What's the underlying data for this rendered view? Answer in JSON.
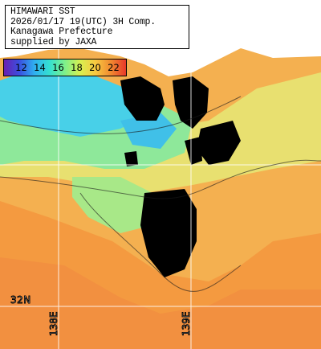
{
  "caption": {
    "line1": "HIMAWARI SST",
    "line2": "2026/01/17 19(UTC) 3H Comp.",
    "line3": "Kanagawa Prefecture",
    "line4": "supplied by JAXA"
  },
  "legend": {
    "labels": [
      "12",
      "14",
      "16",
      "18",
      "20",
      "22"
    ],
    "colors": [
      "#6a1fb0",
      "#3a4fe0",
      "#2fb0f0",
      "#35e0d0",
      "#7ff08a",
      "#d8f050",
      "#f8c840",
      "#f08a30",
      "#e83a2a"
    ]
  },
  "graticule": {
    "lat_label": "32N",
    "lon_labels": [
      "138E",
      "139E"
    ]
  },
  "colors": {
    "land": "#000000",
    "cold_water": "#38c8e8",
    "cool_water": "#7fe8a8",
    "mid_water": "#c8e878",
    "warm_water": "#f4c458",
    "hot_water": "#f4a048",
    "cloud": "#ffffff"
  }
}
